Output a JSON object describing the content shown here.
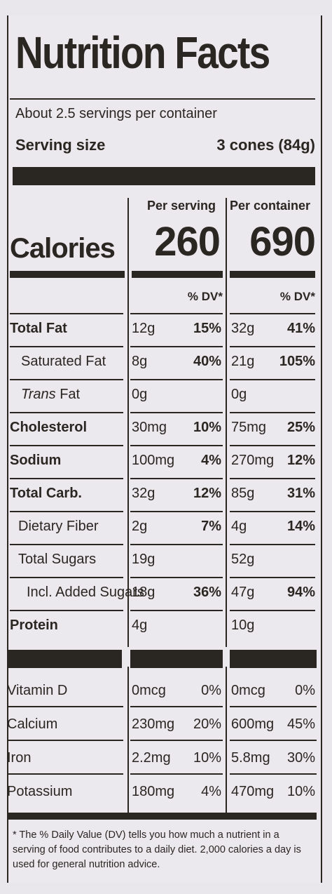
{
  "title": "Nutrition Facts",
  "servings_per_container": "About 2.5 servings per container",
  "serving_size_label": "Serving size",
  "serving_size_value": "3 cones (84g)",
  "per_serving_label": "Per serving",
  "per_container_label": "Per container",
  "calories_label": "Calories",
  "calories_per_serving": "260",
  "calories_per_container": "690",
  "dv_header": "% DV*",
  "nutrients": [
    {
      "name": "Total Fat",
      "bold": true,
      "serving": "12g",
      "serving_dv": "15%",
      "container": "32g",
      "container_dv": "41%"
    },
    {
      "name": "Saturated Fat",
      "bold": false,
      "serving": "8g",
      "serving_dv": "40%",
      "container": "21g",
      "container_dv": "105%"
    },
    {
      "name_italic": "Trans",
      "name_rest": " Fat",
      "bold": false,
      "serving": "0g",
      "serving_dv": "",
      "container": "0g",
      "container_dv": ""
    },
    {
      "name": "Cholesterol",
      "bold": true,
      "serving": "30mg",
      "serving_dv": "10%",
      "container": "75mg",
      "container_dv": "25%"
    },
    {
      "name": "Sodium",
      "bold": true,
      "serving": "100mg",
      "serving_dv": "4%",
      "container": "270mg",
      "container_dv": "12%"
    },
    {
      "name": "Total Carb.",
      "bold": true,
      "serving": "32g",
      "serving_dv": "12%",
      "container": "85g",
      "container_dv": "31%"
    },
    {
      "name": "Dietary Fiber",
      "bold": false,
      "serving": "2g",
      "serving_dv": "7%",
      "container": "4g",
      "container_dv": "14%"
    },
    {
      "name": "Total Sugars",
      "bold": false,
      "serving": "19g",
      "serving_dv": "",
      "container": "52g",
      "container_dv": ""
    },
    {
      "name": "Incl. Added Sugars",
      "bold": false,
      "serving": "18g",
      "serving_dv": "36%",
      "container": "47g",
      "container_dv": "94%"
    },
    {
      "name": "Protein",
      "bold": true,
      "serving": "4g",
      "serving_dv": "",
      "container": "10g",
      "container_dv": ""
    }
  ],
  "vitamins": [
    {
      "name": "Vitamin D",
      "serving": "0mcg",
      "serving_dv": "0%",
      "container": "0mcg",
      "container_dv": "0%"
    },
    {
      "name": "Calcium",
      "serving": "230mg",
      "serving_dv": "20%",
      "container": "600mg",
      "container_dv": "45%"
    },
    {
      "name": "Iron",
      "serving": "2.2mg",
      "serving_dv": "10%",
      "container": "5.8mg",
      "container_dv": "30%"
    },
    {
      "name": "Potassium",
      "serving": "180mg",
      "serving_dv": "4%",
      "container": "470mg",
      "container_dv": "10%"
    }
  ],
  "footnote": "* The % Daily Value (DV) tells you how much a nutrient in a serving of food contributes to a daily diet. 2,000 calories a day is used for general nutrition advice."
}
